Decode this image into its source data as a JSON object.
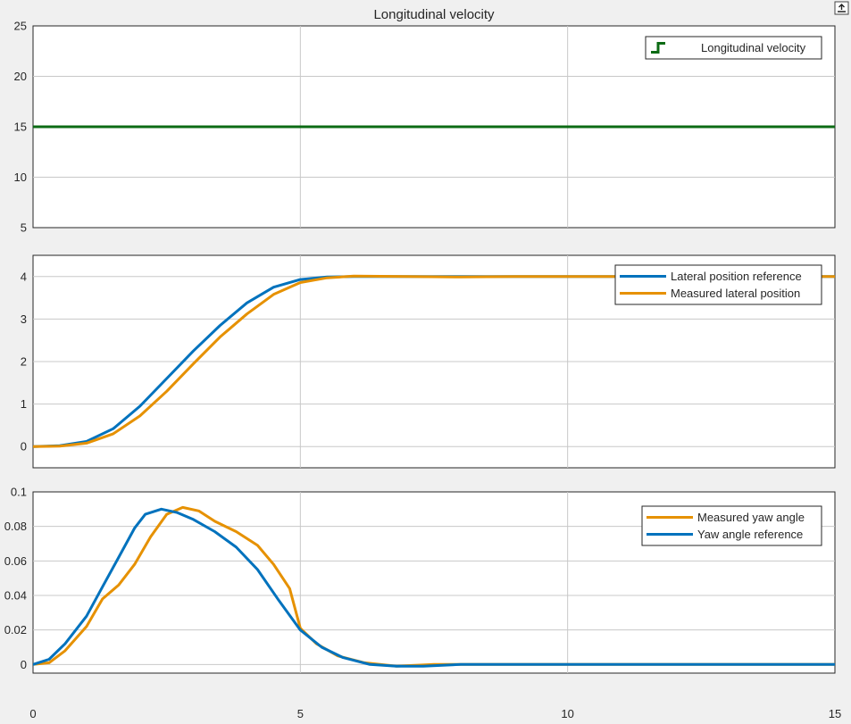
{
  "colors": {
    "green": "#0c6b14",
    "blue": "#0072bd",
    "orange": "#e69100"
  },
  "undock_icon": "undock-arrow-icon",
  "chart_data": [
    {
      "type": "line",
      "title": "Longitudinal velocity",
      "xlim": [
        0,
        15
      ],
      "ylim": [
        5,
        25
      ],
      "yticks": [
        5,
        10,
        15,
        20,
        25
      ],
      "ytick_labels": [
        "5",
        "10",
        "15",
        "20",
        "25"
      ],
      "grid": true,
      "legend": "top-right",
      "legend_icon": "step-signal-icon",
      "series": [
        {
          "name": "Longitudinal velocity",
          "color": "#0c6b14",
          "x": [
            0,
            15
          ],
          "y": [
            15,
            15
          ]
        }
      ]
    },
    {
      "type": "line",
      "title": "",
      "xlim": [
        0,
        15
      ],
      "ylim": [
        -0.5,
        4.5
      ],
      "yticks": [
        0,
        1,
        2,
        3,
        4
      ],
      "ytick_labels": [
        "0",
        "1",
        "2",
        "3",
        "4"
      ],
      "grid": true,
      "legend": "top-right",
      "series": [
        {
          "name": "Lateral position reference",
          "color": "#0072bd",
          "x": [
            0,
            0.5,
            1,
            1.5,
            2,
            2.5,
            3,
            3.5,
            4,
            4.5,
            5,
            5.5,
            6,
            7,
            8,
            9,
            10,
            11,
            12,
            13,
            14,
            15
          ],
          "y": [
            0,
            0.02,
            0.12,
            0.42,
            0.95,
            1.6,
            2.25,
            2.85,
            3.38,
            3.75,
            3.93,
            3.99,
            4.0,
            4.0,
            4.0,
            4.0,
            4.0,
            4.0,
            4.0,
            4.0,
            4.0,
            4.0
          ]
        },
        {
          "name": "Measured lateral position",
          "color": "#e69100",
          "x": [
            0,
            0.5,
            1,
            1.5,
            2,
            2.5,
            3,
            3.5,
            4,
            4.5,
            5,
            5.5,
            6,
            7,
            8,
            9,
            10,
            11,
            12,
            13,
            14,
            15
          ],
          "y": [
            0,
            0.01,
            0.08,
            0.3,
            0.72,
            1.3,
            1.95,
            2.58,
            3.12,
            3.58,
            3.86,
            3.97,
            4.01,
            4.0,
            3.99,
            4.0,
            4.0,
            4.0,
            4.0,
            4.0,
            4.0,
            4.0
          ]
        }
      ]
    },
    {
      "type": "line",
      "title": "",
      "xlim": [
        0,
        15
      ],
      "ylim": [
        -0.005,
        0.1
      ],
      "yticks": [
        0,
        0.02,
        0.04,
        0.06,
        0.08,
        0.1
      ],
      "ytick_labels": [
        "0",
        "0.02",
        "0.04",
        "0.06",
        "0.08",
        "0.1"
      ],
      "xticks": [
        0,
        5,
        10,
        15
      ],
      "xtick_labels": [
        "0",
        "5",
        "10",
        "15"
      ],
      "grid": true,
      "legend": "top-right",
      "series": [
        {
          "name": "Measured yaw angle",
          "color": "#e69100",
          "x": [
            0,
            0.3,
            0.6,
            1.0,
            1.3,
            1.6,
            1.9,
            2.2,
            2.5,
            2.8,
            3.1,
            3.4,
            3.8,
            4.2,
            4.5,
            4.8,
            5.0,
            5.3,
            5.7,
            6.2,
            6.8,
            7.5,
            8.0,
            9,
            10,
            11,
            12,
            13,
            14,
            15
          ],
          "y": [
            0,
            0.001,
            0.008,
            0.022,
            0.038,
            0.046,
            0.058,
            0.074,
            0.087,
            0.091,
            0.089,
            0.083,
            0.077,
            0.069,
            0.058,
            0.044,
            0.021,
            0.012,
            0.005,
            0.001,
            -0.001,
            0.0,
            0.0,
            0.0,
            0.0,
            0.0,
            0.0,
            0.0,
            0.0,
            0.0
          ]
        },
        {
          "name": "Yaw angle reference",
          "color": "#0072bd",
          "x": [
            0,
            0.3,
            0.6,
            1.0,
            1.3,
            1.6,
            1.9,
            2.1,
            2.4,
            2.7,
            3.0,
            3.4,
            3.8,
            4.2,
            4.6,
            5.0,
            5.4,
            5.8,
            6.3,
            6.8,
            7.3,
            8.0,
            9,
            10,
            11,
            12,
            13,
            14,
            15
          ],
          "y": [
            0,
            0.003,
            0.012,
            0.028,
            0.045,
            0.062,
            0.079,
            0.087,
            0.09,
            0.088,
            0.084,
            0.077,
            0.068,
            0.055,
            0.037,
            0.02,
            0.01,
            0.004,
            0.0,
            -0.001,
            -0.001,
            0.0,
            0.0,
            0.0,
            0.0,
            0.0,
            0.0,
            0.0,
            0.0
          ]
        }
      ]
    }
  ]
}
